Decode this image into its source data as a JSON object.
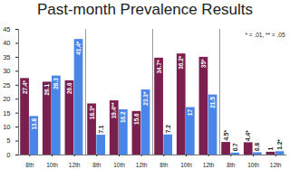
{
  "chart_data": {
    "type": "bar",
    "title": "Past-month Prevalence Results",
    "categories": [
      "8th",
      "10th",
      "12th",
      "8th",
      "10th",
      "12th",
      "8th",
      "10th",
      "12th",
      "8th",
      "10th",
      "12th"
    ],
    "series": [
      {
        "color": "#7a1f4e",
        "values": [
          27.4,
          26.1,
          26.6,
          18.3,
          19.4,
          15.6,
          34.7,
          36.2,
          35,
          4.5,
          4.4,
          1
        ],
        "value_labels": [
          "27.4*",
          "26.1",
          "26.6",
          "18.3*",
          "19.4**",
          "15.6",
          "34.7*",
          "36.2*",
          "35*",
          "4.5*",
          "4.4*",
          "1"
        ]
      },
      {
        "color": "#4a86e8",
        "values": [
          13.8,
          28.3,
          41.4,
          7.1,
          16.2,
          23.3,
          7.2,
          17,
          21.5,
          0.7,
          0.8,
          1.2
        ],
        "value_labels": [
          "13.8",
          "28.3",
          "41.4*",
          "7.1",
          "16.2",
          "23.3*",
          "7.2",
          "17",
          "21.5",
          "0.7",
          "0.8",
          "1.2*"
        ]
      }
    ],
    "annotations": [
      "* = .01, ** = .05"
    ],
    "ylim": [
      0,
      45
    ],
    "yticks": [
      0,
      5,
      10,
      15,
      20,
      25,
      30,
      35,
      40,
      45
    ],
    "grid": false,
    "data_labels": true
  }
}
